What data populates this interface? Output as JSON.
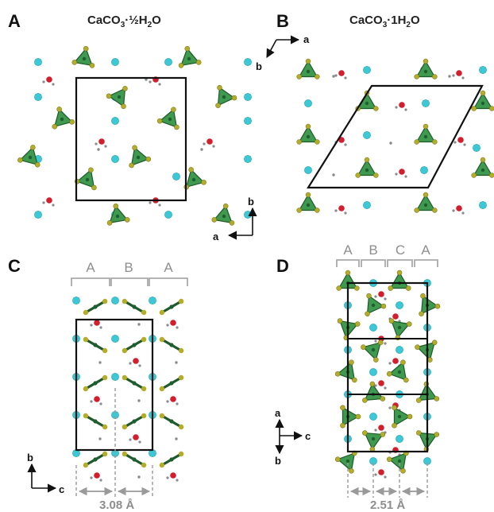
{
  "colors": {
    "calcium": "#3cc8d4",
    "oxygen_water": "#d21e2d",
    "hydrogen": "#8a8a8a",
    "carbonate_face": "#3f9a4f",
    "carbonate_edge": "#1f5a2a",
    "carbonate_oxygen": "#b3ad2a",
    "carbon": "#1d5f2e",
    "cell": "#111111",
    "bracket": "#a9a9a9"
  },
  "panels": {
    "a": {
      "letter": "A",
      "title_main": "CaCO",
      "title_sub1": "3",
      "title_mid": "·½H",
      "title_sub2": "2",
      "title_end": "O",
      "axis_1": "b",
      "axis_2": "a"
    },
    "b": {
      "letter": "B",
      "title_main": "CaCO",
      "title_sub1": "3",
      "title_mid": "·1H",
      "title_sub2": "2",
      "title_end": "O",
      "axis_1": "a",
      "axis_2": "b"
    },
    "c": {
      "letter": "C",
      "stack_labels": [
        "A",
        "B",
        "A"
      ],
      "axis_1": "b",
      "axis_2": "c",
      "distance": "3.08 Å"
    },
    "d": {
      "letter": "D",
      "stack_labels": [
        "A",
        "B",
        "C",
        "A"
      ],
      "axis_1": "a",
      "axis_2": "c",
      "axis_3": "b",
      "distance": "2.51 Å"
    }
  }
}
